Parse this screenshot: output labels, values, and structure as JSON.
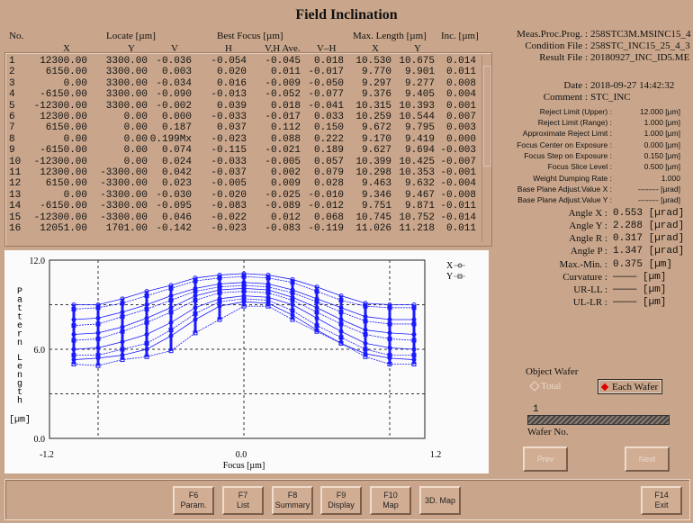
{
  "title": "Field Inclination",
  "table": {
    "headers": {
      "no": "No.",
      "locate": "Locate [µm]",
      "best_focus": "Best Focus [µm]",
      "max_length": "Max. Length [µm]",
      "inc": "Inc. [µm]",
      "x": "X",
      "y": "Y",
      "v": "V",
      "h": "H",
      "vh_ave": "V,H Ave.",
      "v_h": "V–H",
      "mx": "X",
      "my": "Y"
    },
    "rows": [
      [
        "1",
        "12300.00",
        "3300.00",
        "-0.036",
        "-0.054",
        "-0.045",
        "0.018",
        "10.530",
        "10.675",
        "0.014"
      ],
      [
        "2",
        "6150.00",
        "3300.00",
        "0.003",
        "0.020",
        "0.011",
        "-0.017",
        "9.770",
        "9.901",
        "0.011"
      ],
      [
        "3",
        "0.00",
        "3300.00",
        "-0.034",
        "0.016",
        "-0.009",
        "-0.050",
        "9.297",
        "9.277",
        "0.008"
      ],
      [
        "4",
        "-6150.00",
        "3300.00",
        "-0.090",
        "-0.013",
        "-0.052",
        "-0.077",
        "9.376",
        "9.405",
        "0.004"
      ],
      [
        "5",
        "-12300.00",
        "3300.00",
        "-0.002",
        "0.039",
        "0.018",
        "-0.041",
        "10.315",
        "10.393",
        "0.001"
      ],
      [
        "6",
        "12300.00",
        "0.00",
        "0.000",
        "-0.033",
        "-0.017",
        "0.033",
        "10.259",
        "10.544",
        "0.007"
      ],
      [
        "7",
        "6150.00",
        "0.00",
        "0.187",
        "0.037",
        "0.112",
        "0.150",
        "9.672",
        "9.795",
        "0.003"
      ],
      [
        "8",
        "0.00",
        "0.00",
        "0.199Mx",
        "-0.023",
        "0.088",
        "0.222",
        "9.170",
        "9.419",
        "0.000"
      ],
      [
        "9",
        "-6150.00",
        "0.00",
        "0.074",
        "-0.115",
        "-0.021",
        "0.189",
        "9.627",
        "9.694",
        "-0.003"
      ],
      [
        "10",
        "-12300.00",
        "0.00",
        "0.024",
        "-0.033",
        "-0.005",
        "0.057",
        "10.399",
        "10.425",
        "-0.007"
      ],
      [
        "11",
        "12300.00",
        "-3300.00",
        "0.042",
        "-0.037",
        "0.002",
        "0.079",
        "10.298",
        "10.353",
        "-0.001"
      ],
      [
        "12",
        "6150.00",
        "-3300.00",
        "0.023",
        "-0.005",
        "0.009",
        "0.028",
        "9.463",
        "9.632",
        "-0.004"
      ],
      [
        "13",
        "0.00",
        "-3300.00",
        "-0.030",
        "-0.020",
        "-0.025",
        "-0.010",
        "9.346",
        "9.467",
        "-0.008"
      ],
      [
        "14",
        "-6150.00",
        "-3300.00",
        "-0.095",
        "-0.083",
        "-0.089",
        "-0.012",
        "9.751",
        "9.871",
        "-0.011"
      ],
      [
        "15",
        "-12300.00",
        "-3300.00",
        "0.046",
        "-0.022",
        "0.012",
        "0.068",
        "10.745",
        "10.752",
        "-0.014"
      ],
      [
        "16",
        "12051.00",
        "1701.00",
        "-0.142",
        "-0.023",
        "-0.083",
        "-0.119",
        "11.026",
        "11.218",
        "0.011"
      ]
    ]
  },
  "info": [
    {
      "label": "Meas.Proc.Prog. :",
      "value": "258STC3M.MSINC15_4"
    },
    {
      "label": "Condition File :",
      "value": "258STC_INC15_25_4_3"
    },
    {
      "label": "Result File :",
      "value": "20180927_INC_ID5.ME"
    },
    {
      "label": "Date :",
      "value": "2018-09-27 14:42:32"
    },
    {
      "label": "Comment :",
      "value": "STC_INC"
    }
  ],
  "params": [
    {
      "label": "Reject Limit (Upper) :",
      "value": "12.000 [µm]"
    },
    {
      "label": "Reject Limit (Range) :",
      "value": "1.000 [µm]"
    },
    {
      "label": "Approximate Reject Limit :",
      "value": "1.000 [µm]"
    },
    {
      "label": "Focus Center on Exposure :",
      "value": "0.000 [µm]"
    },
    {
      "label": "Focus Step on Exposure :",
      "value": "0.150 [µm]"
    },
    {
      "label": "Focus Slice Level :",
      "value": "0.500 [µm]"
    },
    {
      "label": "Weight Dumping Rate :",
      "value": "1.000"
    },
    {
      "label": "Base Plane Adjust.Value X :",
      "value": "-------- [µrad]"
    },
    {
      "label": "Base Plane Adjust.Value Y :",
      "value": "-------- [µrad]"
    }
  ],
  "results": [
    {
      "label": "Angle X :",
      "value": "0.553 [µrad]"
    },
    {
      "label": "Angle Y :",
      "value": "2.288 [µrad]"
    },
    {
      "label": "Angle R :",
      "value": "0.317 [µrad]"
    },
    {
      "label": "Angle P :",
      "value": "1.347 [µrad]"
    },
    {
      "label": "Max.-Min. :",
      "value": "0.375 [µm]"
    },
    {
      "label": "Curvature :",
      "value": "———— [µm]"
    },
    {
      "label": "UR-LL :",
      "value": "———— [µm]"
    },
    {
      "label": "UL-LR :",
      "value": "———— [µm]"
    }
  ],
  "wafer": {
    "title": "Object Wafer",
    "total": "Total",
    "each": "Each Wafer",
    "selected": "each",
    "number": "1",
    "label": "Wafer No.",
    "prev": "Prev",
    "next": "Next",
    "accent": "#e00000"
  },
  "buttons": [
    {
      "key": "F6",
      "label": "Param."
    },
    {
      "key": "F7",
      "label": "List"
    },
    {
      "key": "F8",
      "label": "Summary"
    },
    {
      "key": "F9",
      "label": "Display"
    },
    {
      "key": "F10",
      "label": "Map"
    },
    {
      "key": "",
      "label": "3D. Map"
    },
    {
      "key": "F14",
      "label": "Exit"
    }
  ],
  "chart_data": {
    "type": "line",
    "xlabel": "Focus [µm]",
    "ylabel": "Pattern Length [µm]",
    "xlim": [
      -1.2,
      1.2
    ],
    "ylim": [
      0,
      12
    ],
    "xticks": [
      "-1.2",
      "0.0",
      "1.2"
    ],
    "yticks": [
      "0.0",
      "6.0",
      "12.0"
    ],
    "grid": true,
    "legend": "top-right",
    "color": "#1a1aff",
    "legend_entries": [
      {
        "name": "X",
        "marker": "circle"
      },
      {
        "name": "Y",
        "marker": "square"
      }
    ],
    "x": [
      -1.05,
      -0.9,
      -0.75,
      -0.6,
      -0.45,
      -0.3,
      -0.15,
      0,
      0.15,
      0.3,
      0.45,
      0.6,
      0.75,
      0.9,
      1.05
    ],
    "series": [
      {
        "name": "X",
        "values": [
          9.0,
          9.0,
          9.4,
          9.9,
          10.3,
          10.8,
          11.0,
          11.1,
          11.0,
          10.7,
          10.2,
          9.6,
          9.1,
          9.0,
          9.0
        ]
      },
      {
        "name": "Y",
        "values": [
          8.7,
          8.8,
          9.1,
          9.6,
          10.1,
          10.6,
          10.8,
          10.9,
          10.8,
          10.5,
          9.9,
          9.3,
          8.9,
          8.8,
          8.8
        ]
      },
      {
        "name": "X",
        "values": [
          8.0,
          8.1,
          8.5,
          9.0,
          9.6,
          10.1,
          10.4,
          10.5,
          10.4,
          10.0,
          9.4,
          8.8,
          8.2,
          8.0,
          8.0
        ]
      },
      {
        "name": "Y",
        "values": [
          7.6,
          7.7,
          8.2,
          8.7,
          9.3,
          9.9,
          10.2,
          10.3,
          10.2,
          9.8,
          9.2,
          8.5,
          7.9,
          7.7,
          7.7
        ]
      },
      {
        "name": "X",
        "values": [
          7.0,
          7.1,
          7.5,
          8.1,
          8.8,
          9.6,
          10.0,
          10.1,
          10.0,
          9.5,
          8.8,
          8.0,
          7.3,
          7.1,
          7.0
        ]
      },
      {
        "name": "Y",
        "values": [
          6.6,
          6.7,
          7.2,
          7.8,
          8.5,
          9.3,
          9.8,
          9.9,
          9.8,
          9.3,
          8.5,
          7.7,
          7.0,
          6.7,
          6.6
        ]
      },
      {
        "name": "X",
        "values": [
          6.0,
          6.1,
          6.5,
          7.0,
          7.8,
          8.8,
          9.4,
          9.6,
          9.5,
          9.0,
          8.1,
          7.2,
          6.4,
          6.1,
          6.0
        ]
      },
      {
        "name": "Y",
        "values": [
          5.6,
          5.6,
          6.0,
          6.4,
          7.3,
          8.4,
          9.2,
          9.4,
          9.3,
          8.6,
          7.6,
          6.8,
          6.0,
          5.6,
          5.6
        ]
      },
      {
        "name": "X",
        "values": [
          5.3,
          5.4,
          5.6,
          6.0,
          6.9,
          8.0,
          8.9,
          9.2,
          9.1,
          8.3,
          7.3,
          6.4,
          5.7,
          5.4,
          5.3
        ]
      },
      {
        "name": "Y",
        "values": [
          5.0,
          4.9,
          5.3,
          5.5,
          5.9,
          7.1,
          8.0,
          8.9,
          8.9,
          8.0,
          7.2,
          6.4,
          5.5,
          5.0,
          5.0
        ]
      }
    ]
  }
}
